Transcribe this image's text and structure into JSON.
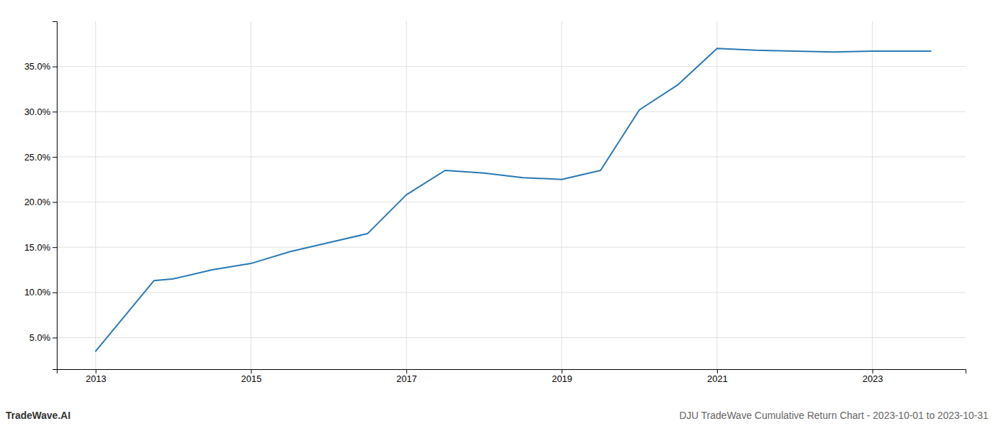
{
  "chart_data": {
    "type": "line",
    "x": [
      2013,
      2013.75,
      2014.0,
      2014.5,
      2015.0,
      2015.5,
      2016.0,
      2016.5,
      2017.0,
      2017.5,
      2018.0,
      2018.5,
      2019.0,
      2019.5,
      2020.0,
      2020.5,
      2021.0,
      2021.5,
      2022.0,
      2022.5,
      2023.0,
      2023.75
    ],
    "values": [
      3.5,
      11.3,
      11.5,
      12.5,
      13.2,
      14.5,
      15.5,
      16.5,
      20.8,
      23.5,
      23.2,
      22.7,
      22.5,
      23.5,
      30.2,
      33.0,
      37.0,
      36.8,
      36.7,
      36.6,
      36.7,
      36.7
    ],
    "color": "#2878b5",
    "xlim": [
      2012.5,
      2024.2
    ],
    "ylim": [
      1.5,
      40.0
    ],
    "xticks": [
      2013,
      2015,
      2017,
      2019,
      2021,
      2023
    ],
    "yticks": [
      {
        "value": 5.0,
        "label": "5.0%"
      },
      {
        "value": 10.0,
        "label": "10.0%"
      },
      {
        "value": 15.0,
        "label": "15.0%"
      },
      {
        "value": 20.0,
        "label": "20.0%"
      },
      {
        "value": 25.0,
        "label": "25.0%"
      },
      {
        "value": 30.0,
        "label": "30.0%"
      },
      {
        "value": 35.0,
        "label": "35.0%"
      }
    ],
    "grid": true,
    "annotations": [
      "TradeWave.AI",
      "DJU TradeWave Cumulative Return Chart - 2023-10-01 to 2023-10-31"
    ]
  }
}
